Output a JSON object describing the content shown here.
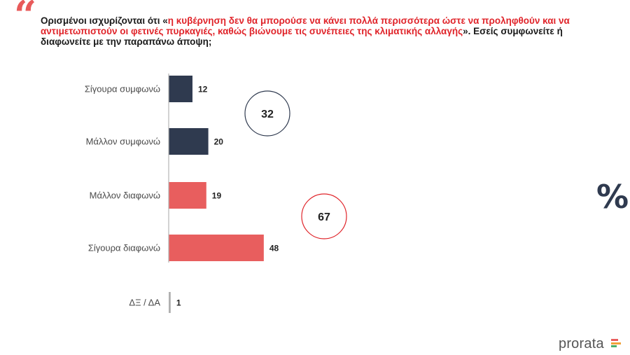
{
  "question": {
    "prefix": "Ορισμένοι ισχυρίζονται ότι «",
    "highlight": "η κυβέρνηση δεν θα μπορούσε να κάνει πολλά περισσότερα ώστε να προληφθούν και να αντιμετωπιστούν οι φετινές πυρκαγιές, καθώς βιώνουμε τις συνέπειες της κλιματικής αλλαγής",
    "suffix": "». Εσείς συμφωνείτε ή διαφωνείτε με την παραπάνω άποψη;"
  },
  "percent_symbol": "%",
  "brand": "prorata",
  "colors": {
    "agree": "#2f3a4f",
    "disagree": "#e85e5e",
    "dk": "#b0b0b0",
    "highlight_text": "#e0242a"
  },
  "chart_data": {
    "type": "bar",
    "orientation": "horizontal",
    "unit": "%",
    "categories": [
      "Σίγουρα συμφωνώ",
      "Μάλλον συμφωνώ",
      "Μάλλον διαφωνώ",
      "Σίγουρα διαφωνώ",
      "ΔΞ / ΔΑ"
    ],
    "values": [
      12,
      20,
      19,
      48,
      1
    ],
    "bar_colors": [
      "#2f3a4f",
      "#2f3a4f",
      "#e85e5e",
      "#e85e5e",
      "#b0b0b0"
    ],
    "totals": [
      {
        "value": 32,
        "color": "#2f3a4f",
        "group": "agree"
      },
      {
        "value": 67,
        "color": "#e0242a",
        "group": "disagree"
      }
    ],
    "xlim": [
      0,
      60
    ],
    "grid": false
  }
}
